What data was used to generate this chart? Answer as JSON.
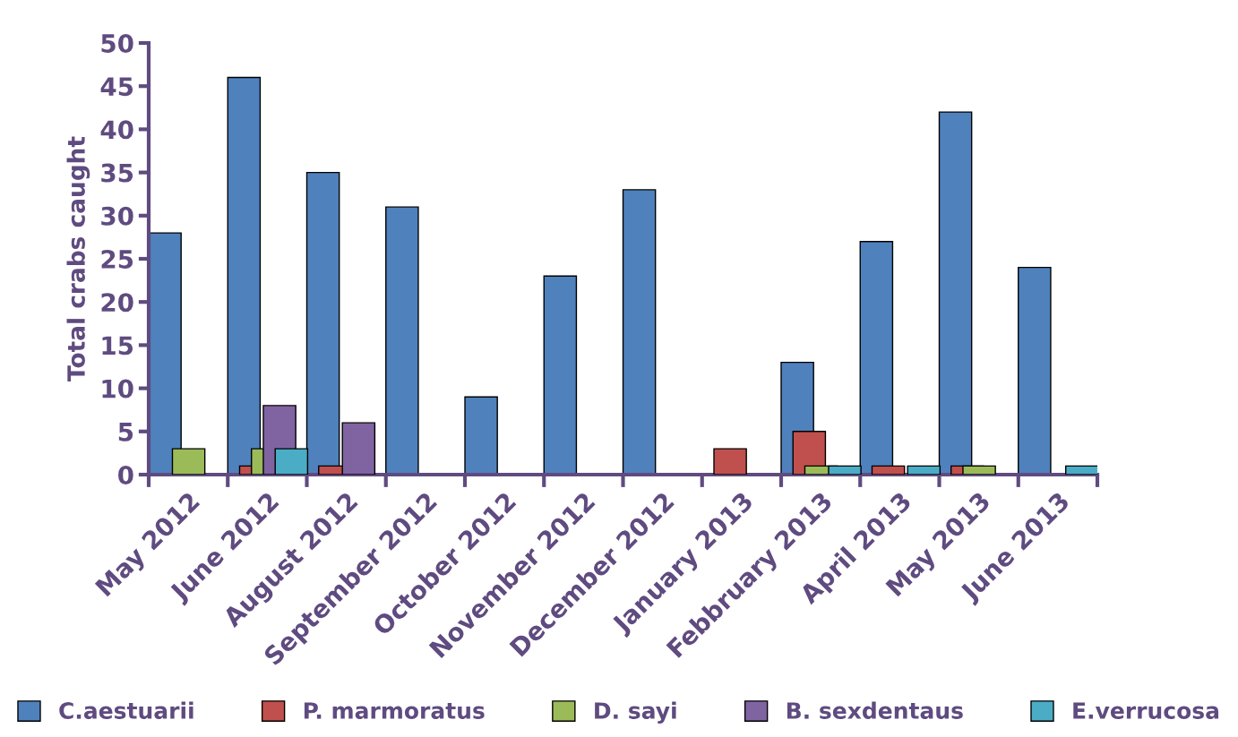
{
  "chart_data": {
    "type": "bar",
    "ylabel": "Total crabs caught",
    "categories": [
      "May 2012",
      "June 2012",
      "August 2012",
      "September 2012",
      "October 2012",
      "November 2012",
      "December 2012",
      "January 2013",
      "Febbruary 2013",
      "April 2013",
      "May 2013",
      "June 2013"
    ],
    "series": [
      {
        "name": "C.aestuarii",
        "color": "#4f81bd",
        "values": [
          28,
          46,
          35,
          31,
          9,
          23,
          33,
          null,
          13,
          27,
          42,
          24
        ]
      },
      {
        "name": "P. marmoratus",
        "color": "#c0504d",
        "values": [
          null,
          1,
          1,
          null,
          null,
          null,
          null,
          3,
          5,
          1,
          1,
          null
        ]
      },
      {
        "name": "D. sayi",
        "color": "#9bbb59",
        "values": [
          3,
          3,
          null,
          null,
          null,
          null,
          null,
          null,
          1,
          null,
          1,
          null
        ]
      },
      {
        "name": "B. sexdentaus",
        "color": "#8064a2",
        "values": [
          null,
          8,
          6,
          null,
          null,
          null,
          null,
          null,
          null,
          null,
          null,
          null
        ]
      },
      {
        "name": "E.verrucosa",
        "color": "#4bacc6",
        "values": [
          null,
          3,
          null,
          null,
          null,
          null,
          null,
          null,
          1,
          1,
          null,
          1
        ]
      }
    ],
    "ylim": [
      0,
      50
    ],
    "yticks": [
      0,
      5,
      10,
      15,
      20,
      25,
      30,
      35,
      40,
      45,
      50
    ],
    "grid": false,
    "legend": "bottom"
  }
}
